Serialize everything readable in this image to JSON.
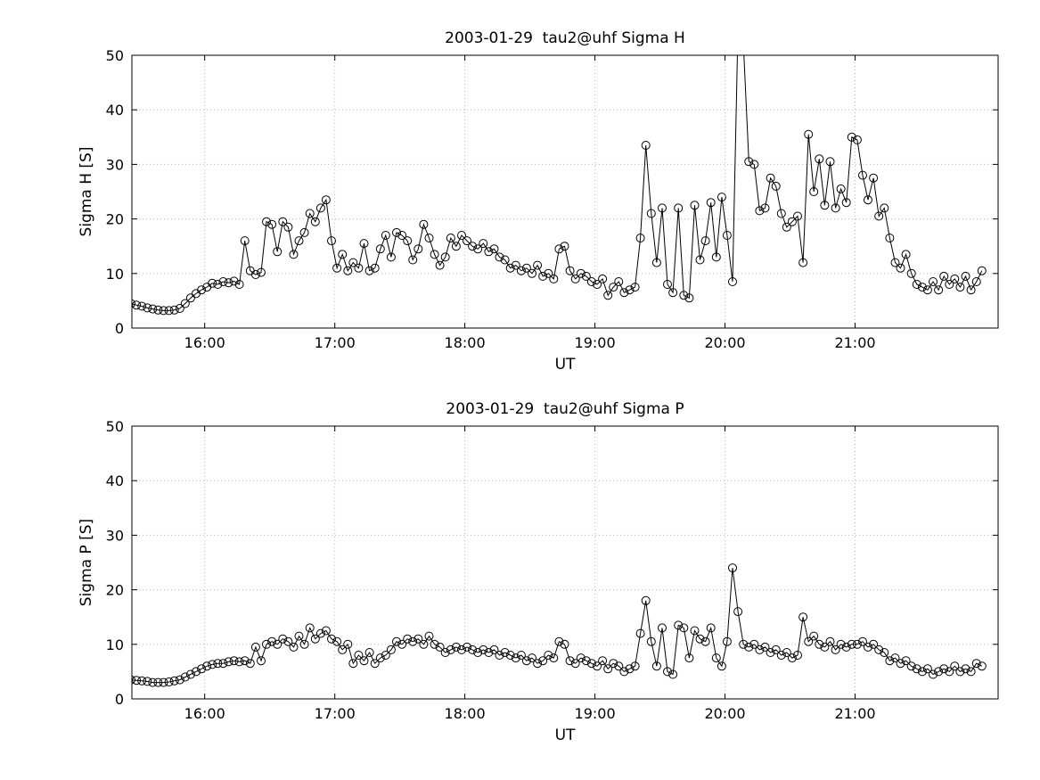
{
  "figure": {
    "background": "#ffffff",
    "axis_color": "#000000",
    "grid_color": "#b8b8b8",
    "line_color": "#000000"
  },
  "chart_data": [
    {
      "type": "line",
      "title": "2003-01-29  tau2@uhf Sigma H",
      "xlabel": "UT",
      "ylabel": "Sigma H [S]",
      "marker": "open-circle",
      "grid": true,
      "xlim": [
        15.44,
        22.1
      ],
      "ylim": [
        0,
        50
      ],
      "xticks": [
        16,
        17,
        18,
        19,
        20,
        21
      ],
      "xtick_labels": [
        "16:00",
        "17:00",
        "18:00",
        "19:00",
        "20:00",
        "21:00"
      ],
      "yticks": [
        0,
        10,
        20,
        30,
        40,
        50
      ],
      "x_start_hours": 15.4333,
      "x_step_minutes": 2.5,
      "values": [
        4.5,
        4.2,
        4.0,
        3.7,
        3.5,
        3.3,
        3.2,
        3.2,
        3.3,
        3.6,
        4.5,
        5.5,
        6.3,
        7.0,
        7.5,
        8.2,
        8.0,
        8.5,
        8.3,
        8.6,
        8.0,
        16.0,
        10.5,
        9.8,
        10.2,
        19.5,
        19.0,
        14.0,
        19.5,
        18.5,
        13.5,
        16.0,
        17.5,
        21.0,
        19.5,
        22.0,
        23.5,
        16.0,
        11.0,
        13.5,
        10.5,
        12.0,
        11.0,
        15.5,
        10.5,
        11.0,
        14.5,
        17.0,
        13.0,
        17.5,
        17.0,
        16.0,
        12.5,
        14.5,
        19.0,
        16.5,
        13.5,
        11.5,
        13.0,
        16.5,
        15.0,
        17.0,
        16.0,
        15.0,
        14.5,
        15.5,
        14.0,
        14.5,
        13.0,
        12.5,
        11.0,
        11.5,
        10.5,
        11.0,
        10.0,
        11.5,
        9.5,
        10.0,
        9.0,
        14.5,
        15.0,
        10.5,
        9.0,
        10.0,
        9.5,
        8.5,
        8.0,
        9.0,
        6.0,
        7.5,
        8.5,
        6.5,
        7.0,
        7.5,
        16.5,
        33.5,
        21.0,
        12.0,
        22.0,
        8.0,
        6.5,
        22.0,
        6.0,
        5.5,
        22.5,
        12.5,
        16.0,
        23.0,
        13.0,
        24.0,
        17.0,
        8.5,
        55.0,
        52.0,
        30.5,
        30.0,
        21.5,
        22.0,
        27.5,
        26.0,
        21.0,
        18.5,
        19.5,
        20.5,
        12.0,
        35.5,
        25.0,
        31.0,
        22.5,
        30.5,
        22.0,
        25.5,
        23.0,
        35.0,
        34.5,
        28.0,
        23.5,
        27.5,
        20.5,
        22.0,
        16.5,
        12.0,
        11.0,
        13.5,
        10.0,
        8.0,
        7.5,
        7.0,
        8.5,
        7.0,
        9.5,
        8.0,
        9.0,
        7.5,
        9.5,
        7.0,
        8.5,
        10.5
      ]
    },
    {
      "type": "line",
      "title": "2003-01-29  tau2@uhf Sigma P",
      "xlabel": "UT",
      "ylabel": "Sigma P [S]",
      "marker": "open-circle",
      "grid": true,
      "xlim": [
        15.44,
        22.1
      ],
      "ylim": [
        0,
        50
      ],
      "xticks": [
        16,
        17,
        18,
        19,
        20,
        21
      ],
      "xtick_labels": [
        "16:00",
        "17:00",
        "18:00",
        "19:00",
        "20:00",
        "21:00"
      ],
      "yticks": [
        0,
        10,
        20,
        30,
        40,
        50
      ],
      "x_start_hours": 15.4333,
      "x_step_minutes": 2.5,
      "values": [
        3.5,
        3.4,
        3.3,
        3.2,
        3.0,
        3.0,
        3.0,
        3.1,
        3.3,
        3.5,
        4.0,
        4.5,
        5.0,
        5.5,
        6.0,
        6.3,
        6.5,
        6.5,
        6.8,
        7.0,
        6.8,
        7.0,
        6.5,
        9.5,
        7.0,
        10.0,
        10.5,
        10.0,
        11.0,
        10.5,
        9.5,
        11.5,
        10.0,
        13.0,
        11.0,
        12.0,
        12.5,
        11.0,
        10.5,
        9.0,
        10.0,
        6.5,
        8.0,
        7.0,
        8.5,
        6.5,
        7.5,
        8.0,
        9.0,
        10.5,
        10.0,
        11.0,
        10.5,
        11.0,
        10.0,
        11.5,
        10.0,
        9.5,
        8.5,
        9.0,
        9.5,
        9.0,
        9.5,
        9.0,
        8.5,
        9.0,
        8.5,
        9.0,
        8.0,
        8.5,
        8.0,
        7.5,
        8.0,
        7.0,
        7.5,
        6.5,
        7.0,
        8.0,
        7.5,
        10.5,
        10.0,
        7.0,
        6.5,
        7.5,
        7.0,
        6.5,
        6.0,
        7.0,
        5.5,
        6.5,
        6.0,
        5.0,
        5.5,
        6.0,
        12.0,
        18.0,
        10.5,
        6.0,
        13.0,
        5.0,
        4.5,
        13.5,
        13.0,
        7.5,
        12.5,
        11.0,
        10.5,
        13.0,
        7.5,
        6.0,
        10.5,
        24.0,
        16.0,
        10.0,
        9.5,
        10.0,
        9.0,
        9.5,
        8.5,
        9.0,
        8.0,
        8.5,
        7.5,
        8.0,
        15.0,
        10.5,
        11.5,
        10.0,
        9.5,
        10.5,
        9.0,
        10.0,
        9.5,
        10.0,
        10.0,
        10.5,
        9.5,
        10.0,
        9.0,
        8.5,
        7.0,
        7.5,
        6.5,
        7.0,
        6.0,
        5.5,
        5.0,
        5.5,
        4.5,
        5.0,
        5.5,
        5.0,
        6.0,
        5.0,
        5.5,
        5.0,
        6.5,
        6.0
      ]
    }
  ]
}
